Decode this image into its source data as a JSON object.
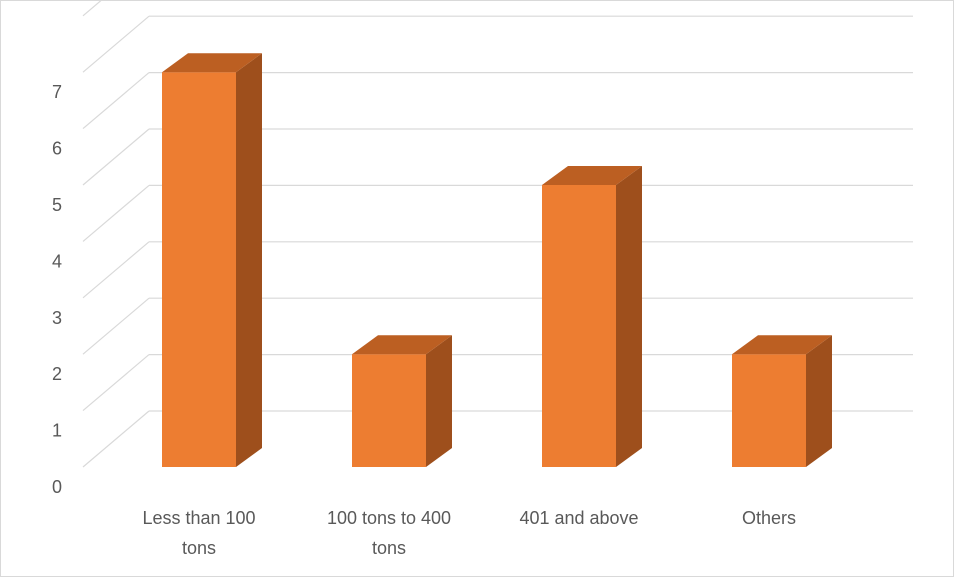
{
  "chart_data": {
    "type": "bar",
    "style": "3d-column",
    "title": "",
    "xlabel": "",
    "ylabel": "",
    "categories": [
      [
        "Less than 100",
        "tons"
      ],
      [
        "100 tons to 400",
        "tons"
      ],
      [
        "401 and above"
      ],
      [
        "Others"
      ]
    ],
    "values": [
      7,
      2,
      5,
      2
    ],
    "ylim": [
      0,
      7
    ],
    "yticks": [
      0,
      1,
      2,
      3,
      4,
      5,
      6,
      7
    ],
    "grid": true,
    "legend": "none",
    "colors": {
      "front": "#ED7D31",
      "side": "#9E4F1C",
      "top": "#BC5F22",
      "grid": "#D9D9D9",
      "text": "#595959"
    }
  }
}
